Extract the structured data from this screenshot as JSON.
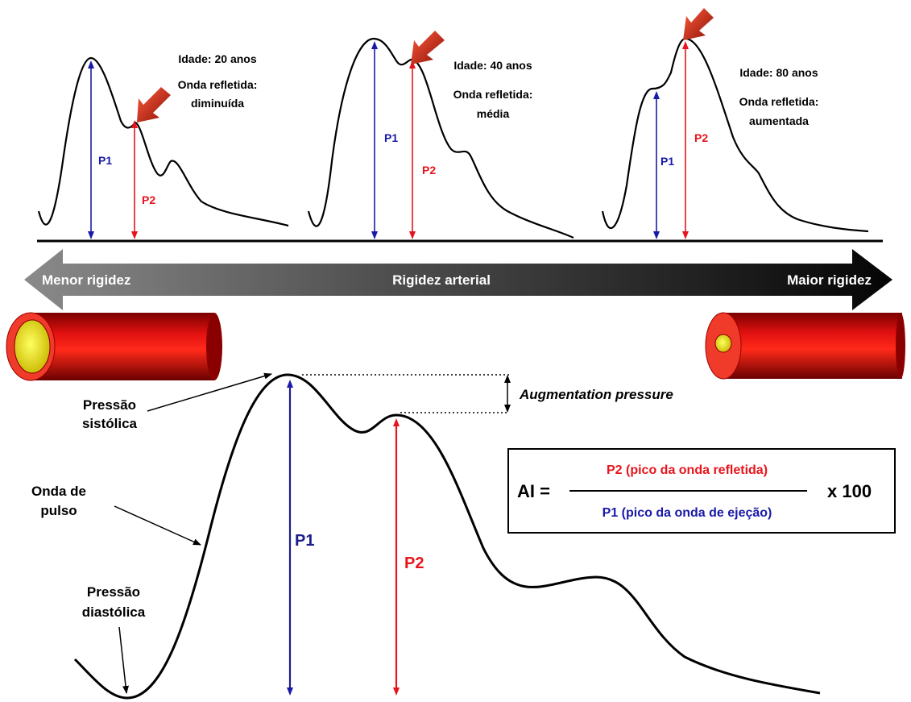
{
  "colors": {
    "p1": "#1a1aa8",
    "p2": "#e8141c",
    "p1_dark": "#1c1c8c",
    "curve": "#000000",
    "artery_outer": "#e01010",
    "artery_lumen": "#f2e600",
    "arrow_pointer": "#c0281a"
  },
  "panels": [
    {
      "id": "young",
      "age": "Idade: 20 anos",
      "reflected_title": "Onda refletida:",
      "reflected_value": "diminuída",
      "p1": "P1",
      "p2": "P2"
    },
    {
      "id": "middle",
      "age": "Idade: 40 anos",
      "reflected_title": "Onda refletida:",
      "reflected_value": "média",
      "p1": "P1",
      "p2": "P2"
    },
    {
      "id": "old",
      "age": "Idade: 80 anos",
      "reflected_title": "Onda refletida:",
      "reflected_value": "aumentada",
      "p1": "P1",
      "p2": "P2"
    }
  ],
  "stiffness_bar": {
    "left": "Menor rigidez",
    "center": "Rigidez arterial",
    "right": "Maior rigidez"
  },
  "main_wave": {
    "systolic_label_line1": "Pressão",
    "systolic_label_line2": "sistólica",
    "pulse_label_line1": "Onda de",
    "pulse_label_line2": "pulso",
    "diastolic_label_line1": "Pressão",
    "diastolic_label_line2": "diastólica",
    "augmentation": "Augmentation pressure",
    "p1": "P1",
    "p2": "P2"
  },
  "formula": {
    "lhs": "AI =",
    "numerator": "P2 (pico da onda refletida)",
    "denominator": "P1 (pico da onda de ejeção)",
    "multiplier": "x 100"
  }
}
